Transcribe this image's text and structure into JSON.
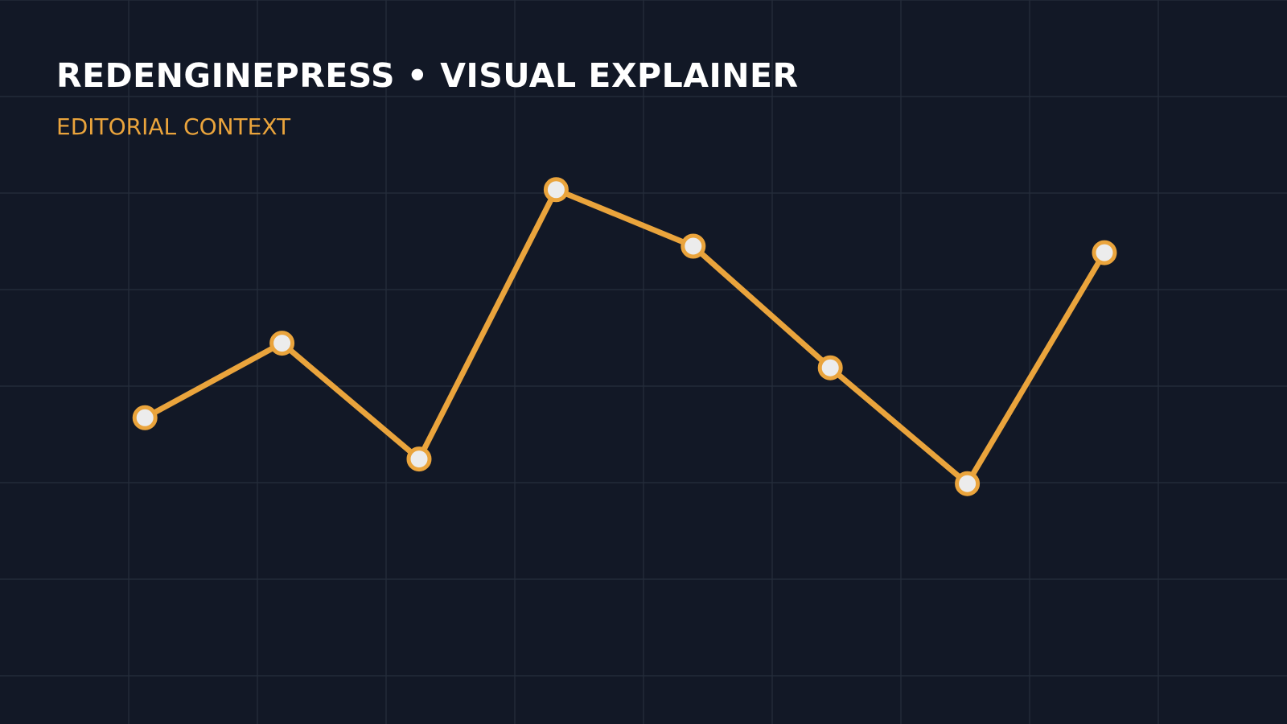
{
  "chart_data": {
    "type": "line",
    "title": "REDENGINEPRESS • VISUAL EXPLAINER",
    "subtitle": "EDITORIAL CONTEXT",
    "categories": [
      null,
      null,
      null,
      null,
      null,
      null,
      null,
      null
    ],
    "values": [
      42.3,
      52.6,
      36.6,
      73.8,
      66.0,
      49.2,
      33.2,
      65.1
    ],
    "color": "#eaa43c",
    "ylim": [
      0,
      100
    ]
  }
}
